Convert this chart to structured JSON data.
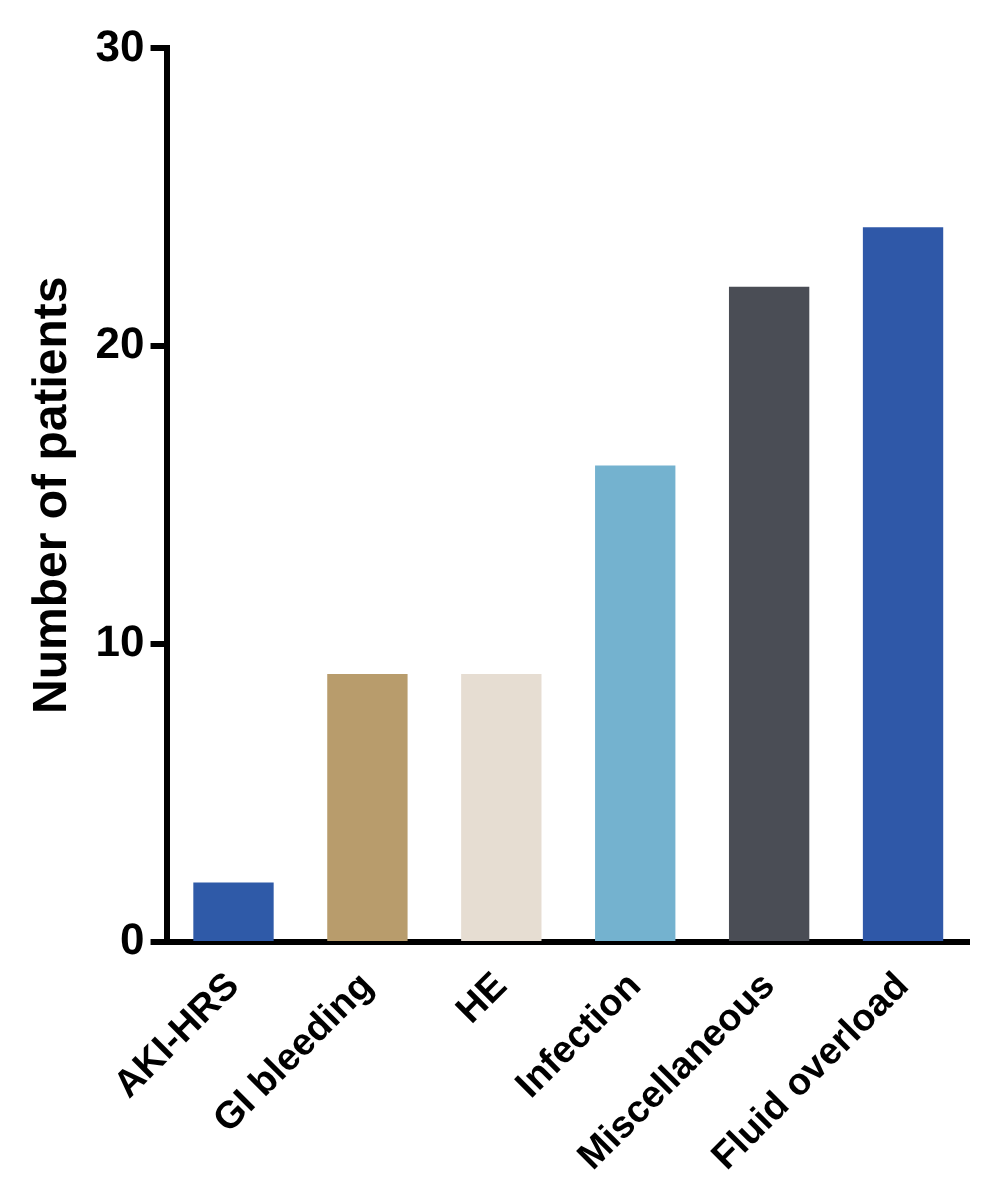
{
  "chart_data": {
    "type": "bar",
    "ylabel": "Number of patients",
    "categories": [
      "AKI-HRS",
      "GI bleeding",
      "HE",
      "Infection",
      "Miscellaneous",
      "Fluid overload"
    ],
    "values": [
      2,
      9,
      9,
      16,
      22,
      24
    ],
    "colors": [
      "#2f5aa8",
      "#b89c6c",
      "#e6ddd2",
      "#74b2cf",
      "#4a4d55",
      "#2f58a8"
    ],
    "ylim": [
      0,
      30
    ],
    "yticks": [
      0,
      10,
      20,
      30
    ],
    "grid": false,
    "legend": false
  }
}
